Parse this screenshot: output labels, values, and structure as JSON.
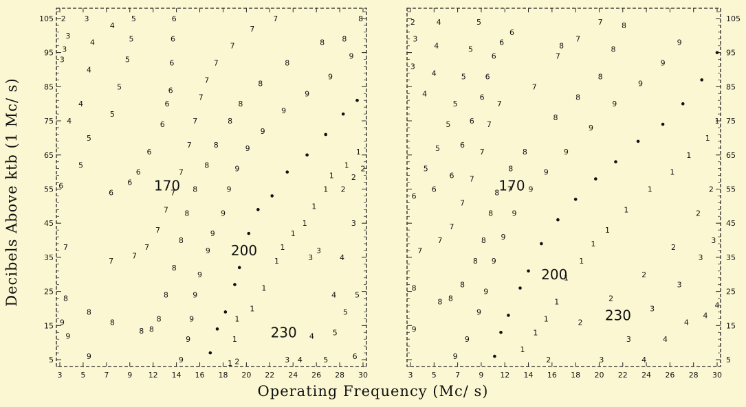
{
  "chart_data": [
    {
      "type": "scatter",
      "panel": "left",
      "xlabel": "Operating Frequency (Mc/ s)",
      "ylabel": "Decibels Above ktb (1 Mc/ s)",
      "x_ticks": [
        "3",
        "5",
        "7",
        "9",
        "12",
        "14",
        "16",
        "18",
        "20",
        "22",
        "24",
        "26",
        "28",
        "30"
      ],
      "y_ticks": [
        "105",
        "95",
        "85",
        "75",
        "65",
        "55",
        "45",
        "35",
        "25",
        "15",
        "5"
      ],
      "ylim": [
        3,
        108
      ],
      "curve_labels": [
        {
          "text": "170",
          "x": 13.2,
          "y": 56
        },
        {
          "text": "200",
          "x": 19.8,
          "y": 37
        },
        {
          "text": "230",
          "x": 23.2,
          "y": 13
        }
      ],
      "series": [
        {
          "symbol": "2",
          "points": [
            [
              3.3,
              105
            ],
            [
              19.2,
              4.5
            ],
            [
              28.3,
              55
            ],
            [
              29.2,
              58.5
            ],
            [
              30,
              61
            ]
          ]
        },
        {
          "symbol": "3",
          "points": [
            [
              3.2,
              93
            ],
            [
              3.7,
              100
            ],
            [
              5.3,
              105
            ],
            [
              3.4,
              96
            ],
            [
              23.5,
              5
            ],
            [
              25.5,
              35
            ],
            [
              26.2,
              37
            ],
            [
              29.2,
              45
            ]
          ]
        },
        {
          "symbol": "4",
          "points": [
            [
              7.5,
              103
            ],
            [
              5.8,
              98
            ],
            [
              5.5,
              90
            ],
            [
              4.8,
              80
            ],
            [
              3.8,
              75
            ],
            [
              24.6,
              5
            ],
            [
              25.6,
              12
            ],
            [
              27.5,
              24
            ],
            [
              28.2,
              35
            ]
          ]
        },
        {
          "symbol": "5",
          "points": [
            [
              9.5,
              105
            ],
            [
              9.2,
              99
            ],
            [
              8.8,
              93
            ],
            [
              8.1,
              85
            ],
            [
              7.5,
              77
            ],
            [
              5.5,
              70
            ],
            [
              4.8,
              62
            ],
            [
              26.8,
              5
            ],
            [
              27.6,
              13
            ],
            [
              28.5,
              19
            ],
            [
              29.5,
              24
            ]
          ]
        },
        {
          "symbol": "6",
          "points": [
            [
              3.1,
              56
            ],
            [
              13.8,
              105
            ],
            [
              13.7,
              99
            ],
            [
              13.6,
              92
            ],
            [
              13.5,
              84
            ],
            [
              13.2,
              80
            ],
            [
              12.8,
              74
            ],
            [
              11.5,
              66
            ],
            [
              10.1,
              60
            ],
            [
              9,
              57
            ],
            [
              7.4,
              54
            ],
            [
              29.3,
              6
            ]
          ]
        },
        {
          "symbol": "7",
          "points": [
            [
              3.5,
              38
            ],
            [
              7.4,
              34
            ],
            [
              9.6,
              35.5
            ],
            [
              11.2,
              38
            ],
            [
              12.4,
              43
            ],
            [
              13.1,
              49
            ],
            [
              13.7,
              54
            ],
            [
              14.4,
              60
            ],
            [
              15.1,
              68
            ],
            [
              15.6,
              75
            ],
            [
              16.1,
              82
            ],
            [
              16.6,
              87
            ],
            [
              17.4,
              92
            ],
            [
              18.8,
              97
            ],
            [
              20.5,
              102
            ],
            [
              22.5,
              105
            ]
          ]
        },
        {
          "symbol": "8",
          "points": [
            [
              3.5,
              23
            ],
            [
              5.5,
              19
            ],
            [
              7.5,
              16
            ],
            [
              10.5,
              13.5
            ],
            [
              11.8,
              14
            ],
            [
              12.5,
              17
            ],
            [
              13.1,
              24
            ],
            [
              13.8,
              32
            ],
            [
              14.4,
              40
            ],
            [
              14.9,
              48
            ],
            [
              15.6,
              55
            ],
            [
              16.6,
              62
            ],
            [
              17.4,
              68
            ],
            [
              18.6,
              75
            ],
            [
              19.5,
              80
            ],
            [
              21.2,
              86
            ],
            [
              23.5,
              92
            ],
            [
              26.5,
              98
            ],
            [
              28.4,
              99
            ],
            [
              29.8,
              105
            ]
          ]
        },
        {
          "symbol": "9",
          "points": [
            [
              3.2,
              16
            ],
            [
              3.7,
              12
            ],
            [
              5.5,
              6
            ],
            [
              14.4,
              5
            ],
            [
              15,
              11
            ],
            [
              15.3,
              17
            ],
            [
              15.6,
              24
            ],
            [
              16,
              30
            ],
            [
              16.7,
              37
            ],
            [
              17.1,
              42
            ],
            [
              18,
              48
            ],
            [
              18.5,
              55
            ],
            [
              19.2,
              61
            ],
            [
              20.1,
              67
            ],
            [
              21.4,
              72
            ],
            [
              23.2,
              78
            ],
            [
              25.2,
              83
            ],
            [
              27.2,
              88
            ],
            [
              29,
              94
            ]
          ]
        },
        {
          "symbol": "•",
          "points": [
            [
              16.9,
              7
            ],
            [
              17.5,
              14
            ],
            [
              18.2,
              19
            ],
            [
              19,
              27
            ],
            [
              19.4,
              32
            ],
            [
              20.2,
              42
            ],
            [
              21,
              49
            ],
            [
              22.2,
              53
            ],
            [
              23.5,
              60
            ],
            [
              25.2,
              65
            ],
            [
              26.8,
              71
            ],
            [
              28.3,
              77
            ],
            [
              29.5,
              81
            ]
          ]
        },
        {
          "symbol": "1",
          "points": [
            [
              18.6,
              4
            ],
            [
              19,
              11
            ],
            [
              19.2,
              17
            ],
            [
              20.5,
              20
            ],
            [
              21.5,
              26
            ],
            [
              22.6,
              34
            ],
            [
              23.1,
              38
            ],
            [
              24,
              42
            ],
            [
              25,
              45
            ],
            [
              25.8,
              50
            ],
            [
              26.8,
              55
            ],
            [
              27.3,
              59
            ],
            [
              28.6,
              62
            ],
            [
              29.6,
              66
            ]
          ]
        }
      ]
    },
    {
      "type": "scatter",
      "panel": "right",
      "x_ticks": [
        "3",
        "5",
        "7",
        "9",
        "12",
        "14",
        "16",
        "18",
        "20",
        "22",
        "24",
        "26",
        "28",
        "30"
      ],
      "y_ticks": [
        "105",
        "95",
        "85",
        "75",
        "65",
        "55",
        "45",
        "35",
        "25",
        "15",
        "5"
      ],
      "ylim": [
        3,
        108
      ],
      "curve_labels": [
        {
          "text": "170",
          "x": 12.6,
          "y": 56
        },
        {
          "text": "200",
          "x": 16.2,
          "y": 30
        },
        {
          "text": "230",
          "x": 21.6,
          "y": 18
        }
      ],
      "series": [
        {
          "symbol": "2",
          "points": [
            [
              3.2,
              104
            ],
            [
              15.7,
              5
            ],
            [
              18.4,
              16
            ],
            [
              21,
              23
            ],
            [
              23.8,
              30
            ],
            [
              26.3,
              38
            ],
            [
              28.4,
              48
            ],
            [
              29.5,
              55
            ]
          ]
        },
        {
          "symbol": "3",
          "points": [
            [
              3.4,
              99
            ],
            [
              3.2,
              91
            ],
            [
              20.2,
              5
            ],
            [
              22.5,
              11
            ],
            [
              24.5,
              20
            ],
            [
              26.8,
              27
            ],
            [
              28.6,
              35
            ],
            [
              29.7,
              40
            ]
          ]
        },
        {
          "symbol": "4",
          "points": [
            [
              5.4,
              104
            ],
            [
              5.2,
              97
            ],
            [
              5,
              89
            ],
            [
              4.2,
              83
            ],
            [
              23.8,
              5
            ],
            [
              25.6,
              11
            ],
            [
              27.4,
              16
            ],
            [
              29,
              18
            ],
            [
              30.1,
              21
            ]
          ]
        },
        {
          "symbol": "5",
          "points": [
            [
              8.8,
              104
            ],
            [
              8.1,
              96
            ],
            [
              7.5,
              88
            ],
            [
              6.8,
              80
            ],
            [
              6.2,
              74
            ],
            [
              5.3,
              67
            ],
            [
              4.3,
              61
            ]
          ]
        },
        {
          "symbol": "6",
          "points": [
            [
              3.3,
              53
            ],
            [
              10.6,
              94
            ],
            [
              11.6,
              98
            ],
            [
              12.6,
              101
            ],
            [
              9.8,
              88
            ],
            [
              9.1,
              82
            ],
            [
              8.2,
              75
            ],
            [
              7.4,
              68
            ],
            [
              6.5,
              59
            ],
            [
              5,
              55
            ]
          ]
        },
        {
          "symbol": "7",
          "points": [
            [
              3.8,
              37
            ],
            [
              5.5,
              40
            ],
            [
              6.5,
              44
            ],
            [
              7.4,
              51
            ],
            [
              8.2,
              58
            ],
            [
              9.1,
              66
            ],
            [
              10,
              74
            ],
            [
              11.3,
              80
            ],
            [
              12.4,
              55
            ],
            [
              14.5,
              85
            ],
            [
              16.5,
              94
            ],
            [
              18.2,
              99
            ],
            [
              20.1,
              104
            ]
          ]
        },
        {
          "symbol": "8",
          "points": [
            [
              3.3,
              26
            ],
            [
              5.5,
              22
            ],
            [
              6.4,
              23
            ],
            [
              7.4,
              27
            ],
            [
              8.5,
              34
            ],
            [
              9.3,
              40
            ],
            [
              10.2,
              48
            ],
            [
              11,
              54
            ],
            [
              12.5,
              61
            ],
            [
              13.7,
              66
            ],
            [
              16.3,
              76
            ],
            [
              18.2,
              82
            ],
            [
              20.1,
              88
            ],
            [
              21.2,
              96
            ],
            [
              22.1,
              103
            ],
            [
              16.8,
              97
            ]
          ]
        },
        {
          "symbol": "9",
          "points": [
            [
              3.3,
              14
            ],
            [
              6.8,
              6
            ],
            [
              7.8,
              11
            ],
            [
              8.8,
              19
            ],
            [
              9.6,
              25
            ],
            [
              10.6,
              34
            ],
            [
              11.8,
              41
            ],
            [
              12.8,
              48
            ],
            [
              14.2,
              55
            ],
            [
              15.5,
              60
            ],
            [
              17.2,
              66
            ],
            [
              19.3,
              73
            ],
            [
              21.3,
              80
            ],
            [
              23.5,
              86
            ],
            [
              25.4,
              92
            ],
            [
              26.8,
              98
            ]
          ]
        },
        {
          "symbol": "•",
          "points": [
            [
              10.7,
              6
            ],
            [
              11.5,
              13
            ],
            [
              12.3,
              18
            ],
            [
              13.3,
              26
            ],
            [
              14,
              31
            ],
            [
              15.1,
              39
            ],
            [
              16.5,
              46
            ],
            [
              18,
              52
            ],
            [
              19.7,
              58
            ],
            [
              21.4,
              63
            ],
            [
              23.3,
              69
            ],
            [
              25.4,
              74
            ],
            [
              27.1,
              80
            ],
            [
              28.7,
              87
            ],
            [
              30,
              95
            ]
          ]
        },
        {
          "symbol": "1",
          "points": [
            [
              13.5,
              8
            ],
            [
              14.6,
              13
            ],
            [
              15.5,
              17
            ],
            [
              16.4,
              22
            ],
            [
              17.2,
              29
            ],
            [
              18.5,
              34
            ],
            [
              19.5,
              39
            ],
            [
              20.7,
              43
            ],
            [
              22.3,
              49
            ],
            [
              24.3,
              55
            ],
            [
              26.2,
              60
            ],
            [
              27.6,
              65
            ],
            [
              29.2,
              70
            ],
            [
              30.2,
              75
            ]
          ]
        }
      ]
    }
  ]
}
